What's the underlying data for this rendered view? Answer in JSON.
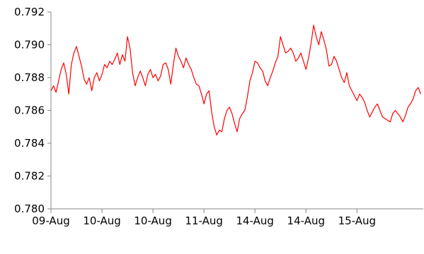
{
  "chart_data": {
    "type": "line",
    "title": "",
    "xlabel": "",
    "ylabel": "",
    "ylim": [
      0.78,
      0.792
    ],
    "y_ticks": [
      0.78,
      0.782,
      0.784,
      0.786,
      0.788,
      0.79,
      0.792
    ],
    "y_tick_labels": [
      "0.780",
      "0.782",
      "0.784",
      "0.786",
      "0.788",
      "0.790",
      "0.792"
    ],
    "x_range": [
      0,
      7.3
    ],
    "x_ticks": [
      0,
      1,
      2,
      3,
      4,
      5,
      6
    ],
    "x_tick_labels": [
      "09-Aug",
      "10-Aug",
      "10-Aug",
      "11-Aug",
      "14-Aug",
      "14-Aug",
      "15-Aug"
    ],
    "grid": false,
    "legend": "none",
    "color": "#ff0000",
    "series": [
      {
        "x": [
          0.0,
          0.05,
          0.1,
          0.15,
          0.2,
          0.25,
          0.3,
          0.35,
          0.4,
          0.45,
          0.5,
          0.55,
          0.6,
          0.65,
          0.7,
          0.75,
          0.8,
          0.85,
          0.9,
          0.95,
          1.0,
          1.05,
          1.1,
          1.15,
          1.2,
          1.25,
          1.3,
          1.35,
          1.4,
          1.45,
          1.5,
          1.55,
          1.6,
          1.65,
          1.7,
          1.75,
          1.8,
          1.85,
          1.9,
          1.95,
          2.0,
          2.05,
          2.1,
          2.15,
          2.2,
          2.25,
          2.3,
          2.35,
          2.4,
          2.45,
          2.5,
          2.55,
          2.6,
          2.65,
          2.7,
          2.75,
          2.8,
          2.85,
          2.9,
          2.95,
          3.0,
          3.05,
          3.1,
          3.15,
          3.2,
          3.25,
          3.3,
          3.35,
          3.4,
          3.45,
          3.5,
          3.55,
          3.6,
          3.65,
          3.7,
          3.75,
          3.8,
          3.85,
          3.9,
          3.95,
          4.0,
          4.05,
          4.1,
          4.15,
          4.2,
          4.25,
          4.3,
          4.35,
          4.4,
          4.45,
          4.5,
          4.55,
          4.6,
          4.65,
          4.7,
          4.75,
          4.8,
          4.85,
          4.9,
          4.95,
          5.0,
          5.05,
          5.1,
          5.15,
          5.2,
          5.25,
          5.3,
          5.35,
          5.4,
          5.45,
          5.5,
          5.55,
          5.6,
          5.65,
          5.7,
          5.75,
          5.8,
          5.85,
          5.9,
          5.95,
          6.0,
          6.05,
          6.1,
          6.15,
          6.2,
          6.25,
          6.3,
          6.35,
          6.4,
          6.45,
          6.5,
          6.55,
          6.6,
          6.65,
          6.7,
          6.75,
          6.8,
          6.85,
          6.9,
          6.95,
          7.0,
          7.05,
          7.1,
          7.15,
          7.2,
          7.25
        ],
        "y": [
          0.7872,
          0.7875,
          0.7871,
          0.7878,
          0.7885,
          0.7889,
          0.7882,
          0.787,
          0.7888,
          0.7895,
          0.7899,
          0.7893,
          0.7887,
          0.7879,
          0.7876,
          0.788,
          0.7872,
          0.788,
          0.7883,
          0.7878,
          0.7882,
          0.7888,
          0.7886,
          0.789,
          0.7888,
          0.7891,
          0.7895,
          0.7888,
          0.7894,
          0.789,
          0.7905,
          0.7898,
          0.7883,
          0.7875,
          0.788,
          0.7884,
          0.788,
          0.7875,
          0.7882,
          0.7885,
          0.788,
          0.7882,
          0.7878,
          0.7881,
          0.7888,
          0.7889,
          0.7885,
          0.7876,
          0.7888,
          0.7898,
          0.7893,
          0.789,
          0.7886,
          0.7892,
          0.7888,
          0.7885,
          0.788,
          0.7876,
          0.7875,
          0.787,
          0.7864,
          0.787,
          0.7872,
          0.7859,
          0.785,
          0.7845,
          0.7848,
          0.7847,
          0.7855,
          0.786,
          0.7862,
          0.7858,
          0.7852,
          0.7847,
          0.7855,
          0.7858,
          0.786,
          0.7868,
          0.7878,
          0.7883,
          0.789,
          0.7889,
          0.7886,
          0.7884,
          0.7878,
          0.7875,
          0.788,
          0.7884,
          0.7889,
          0.7893,
          0.7905,
          0.79,
          0.7895,
          0.7896,
          0.7898,
          0.7895,
          0.789,
          0.7892,
          0.7895,
          0.789,
          0.7885,
          0.7892,
          0.7901,
          0.7912,
          0.7905,
          0.79,
          0.7908,
          0.7903,
          0.7897,
          0.7887,
          0.7888,
          0.7893,
          0.789,
          0.7885,
          0.788,
          0.7877,
          0.7883,
          0.7875,
          0.7872,
          0.7869,
          0.7866,
          0.787,
          0.7868,
          0.7865,
          0.786,
          0.7856,
          0.7859,
          0.7862,
          0.7864,
          0.786,
          0.7856,
          0.7855,
          0.7854,
          0.7853,
          0.7858,
          0.786,
          0.7858,
          0.7856,
          0.7853,
          0.7857,
          0.7862,
          0.7864,
          0.7867,
          0.7872,
          0.7874,
          0.787
        ]
      }
    ]
  }
}
